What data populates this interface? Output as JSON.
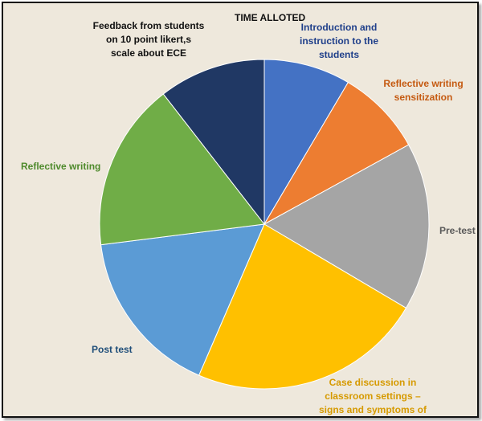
{
  "chart_data": {
    "type": "pie",
    "title": "TIME ALLOTED",
    "slices": [
      {
        "label": "Introduction and instruction to the students",
        "value": 8.5,
        "color": "#4472c4",
        "label_color": "#1f3f8a"
      },
      {
        "label": "Reflective writing sensitization",
        "value": 8.5,
        "color": "#ed7d31",
        "label_color": "#c55a11"
      },
      {
        "label": "Pre-test",
        "value": 16.5,
        "color": "#a5a5a5",
        "label_color": "#595959"
      },
      {
        "label": "Case discussion in classroom settings – signs and symptoms of",
        "value": 23,
        "color": "#ffc000",
        "label_color": "#d69a00"
      },
      {
        "label": "Post test",
        "value": 16.5,
        "color": "#5b9bd5",
        "label_color": "#1f4e79"
      },
      {
        "label": "Reflective writing",
        "value": 16.5,
        "color": "#70ad47",
        "label_color": "#4e8a2c"
      },
      {
        "label": "Feedback from students on 10 point likert,s scale about ECE",
        "value": 10.5,
        "color": "#203864",
        "label_color": "#111111"
      }
    ],
    "legend": "none"
  }
}
